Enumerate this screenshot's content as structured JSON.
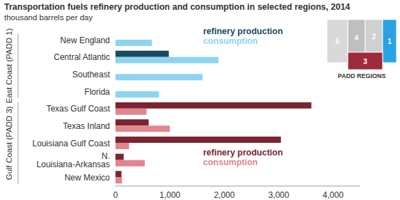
{
  "chart_data": {
    "type": "bar",
    "orientation": "horizontal",
    "title": "Transportation fuels refinery production and consumption in selected regions, 2014",
    "subtitle": "thousand barrels per day",
    "xlim": [
      0,
      4500
    ],
    "xticks": [
      0,
      {
        "value": 1000,
        "label": "1,000"
      },
      {
        "value": 2000,
        "label": "2,000"
      },
      {
        "value": 3000,
        "label": "3,000"
      },
      {
        "value": 4000,
        "label": "4,000"
      }
    ],
    "grid": false,
    "groups": [
      {
        "name": "East Coast (PADD 1)",
        "categories": [
          "New England",
          "Central Atlantic",
          "Southeast",
          "Florida"
        ],
        "series": [
          {
            "name": "refinery production",
            "color": "#1b4a63",
            "values": [
              0,
              980,
              0,
              0
            ]
          },
          {
            "name": "consumption",
            "color": "#8dd4f2",
            "values": [
              670,
              1890,
              1600,
              800
            ]
          }
        ]
      },
      {
        "name": "Gulf Coast (PADD 3)",
        "categories": [
          "Texas Gulf Coast",
          "Texas Inland",
          "Louisiana Gulf Coast",
          "N. Louisiana-Arkansas",
          "New Mexico"
        ],
        "series": [
          {
            "name": "refinery production",
            "color": "#7b2431",
            "values": [
              3600,
              610,
              3040,
              150,
              110
            ]
          },
          {
            "name": "consumption",
            "color": "#e0868f",
            "values": [
              570,
              1000,
              250,
              540,
              120
            ]
          }
        ]
      }
    ],
    "map": {
      "title": "PADD REGIONS",
      "regions": [
        "5",
        "4",
        "2",
        "1",
        "3"
      ]
    }
  }
}
